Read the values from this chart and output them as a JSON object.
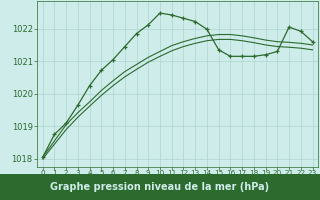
{
  "line1": {
    "x": [
      0,
      1,
      2,
      3,
      4,
      5,
      6,
      7,
      8,
      9,
      10,
      11,
      12,
      13,
      14,
      15,
      16,
      17,
      18,
      19,
      20,
      21,
      22,
      23
    ],
    "y": [
      1018.05,
      1018.55,
      1019.05,
      1019.42,
      1019.75,
      1020.1,
      1020.4,
      1020.68,
      1020.9,
      1021.12,
      1021.3,
      1021.48,
      1021.6,
      1021.7,
      1021.78,
      1021.82,
      1021.82,
      1021.78,
      1021.72,
      1021.65,
      1021.6,
      1021.58,
      1021.55,
      1021.5
    ]
  },
  "line2": {
    "x": [
      0,
      1,
      2,
      3,
      4,
      5,
      6,
      7,
      8,
      9,
      10,
      11,
      12,
      13,
      14,
      15,
      16,
      17,
      18,
      19,
      20,
      21,
      22,
      23
    ],
    "y": [
      1018.0,
      1018.45,
      1018.9,
      1019.28,
      1019.62,
      1019.95,
      1020.25,
      1020.52,
      1020.75,
      1020.97,
      1021.15,
      1021.32,
      1021.45,
      1021.55,
      1021.63,
      1021.67,
      1021.67,
      1021.63,
      1021.57,
      1021.5,
      1021.45,
      1021.43,
      1021.4,
      1021.35
    ]
  },
  "line3_marked": {
    "x": [
      0,
      1,
      2,
      3,
      4,
      5,
      6,
      7,
      8,
      9,
      10,
      11,
      12,
      13,
      14,
      15,
      16,
      17,
      18,
      19,
      20,
      21,
      22,
      23
    ],
    "y": [
      1018.05,
      1018.75,
      1019.1,
      1019.65,
      1020.25,
      1020.72,
      1021.05,
      1021.45,
      1021.85,
      1022.12,
      1022.48,
      1022.42,
      1022.32,
      1022.22,
      1021.98,
      1021.35,
      1021.15,
      1021.15,
      1021.15,
      1021.2,
      1021.3,
      1022.05,
      1021.92,
      1021.6
    ]
  },
  "line_color": "#2d6a2d",
  "bg_color": "#ceecea",
  "grid_color": "#aed4d0",
  "xlabel": "Graphe pression niveau de la mer (hPa)",
  "label_color": "#2d6a2d",
  "xlabel_bg": "#2d6a2d",
  "xlabel_fg": "#ceecea",
  "ylim": [
    1017.75,
    1022.85
  ],
  "xlim": [
    -0.5,
    23.5
  ],
  "yticks": [
    1018,
    1019,
    1020,
    1021,
    1022
  ],
  "xticks": [
    0,
    1,
    2,
    3,
    4,
    5,
    6,
    7,
    8,
    9,
    10,
    11,
    12,
    13,
    14,
    15,
    16,
    17,
    18,
    19,
    20,
    21,
    22,
    23
  ],
  "fontsize_xlabel": 7.0,
  "fontsize_ytick": 6.0,
  "fontsize_xtick": 5.2
}
